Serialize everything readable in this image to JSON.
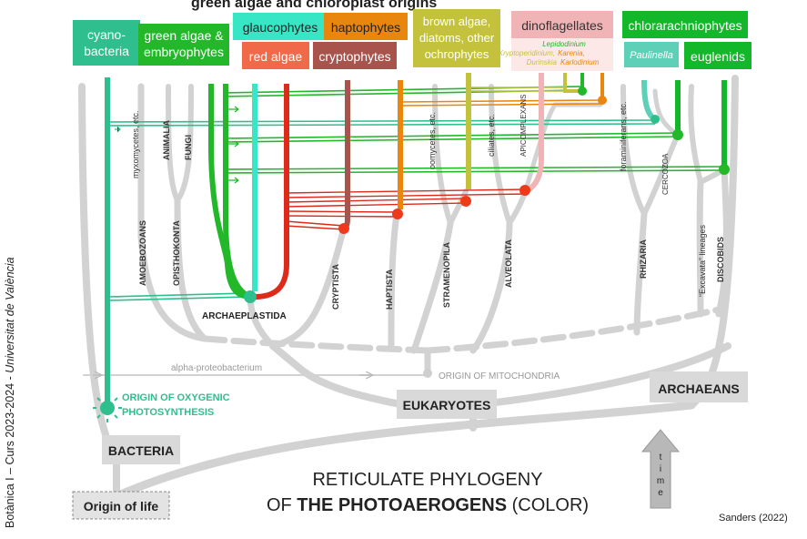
{
  "sidebar": {
    "course": "Botànica I – Curs 2023-2024 - ",
    "university": "Universitat de València"
  },
  "labels": {
    "top_title": "green algae and chloroplast origins",
    "cyano": [
      "cyano-",
      "bacteria"
    ],
    "green_algae": [
      "green algae &",
      "embryophytes"
    ],
    "glaucophytes": "glaucophytes",
    "red_algae": "red algae",
    "haptophytes": "haptophytes",
    "cryptophytes": "cryptophytes",
    "brown_algae": [
      "brown algae,",
      "diatoms, other",
      "ochrophytes"
    ],
    "dinoflagellates": "dinoflagellates",
    "dino_genera_1": "Lepidodinium",
    "dino_genera_2a": "Kryptoperidinium,",
    "dino_genera_2b": "Karenia,",
    "dino_genera_3a": "Durinskia",
    "dino_genera_3b": "Karlodinium",
    "chlorarachniophytes": "chlorarachniophytes",
    "paulinella": "Paulinella",
    "euglenids": "euglenids",
    "myxomycetes": "myxomycetes, etc.",
    "animalia": "ANIMALIA",
    "fungi": "FUNGI",
    "oomycetes": "oomycetes, etc.",
    "ciliates": "ciliates, etc.",
    "apicomplexans": "APICOMPLEXANS",
    "foraminiferans": "foraminiferans, etc.",
    "cercozoa": "CERCOZOA",
    "amoebozoans": "AMOEBOZOANS",
    "opisthokonta": "OPISTHOKONTA",
    "cryptista": "CRYPTISTA",
    "haptista": "HAPTISTA",
    "stramenopila": "STRAMENOPILA",
    "alveolata": "ALVEOLATA",
    "rhizaria": "RHIZARIA",
    "excavata": "“Excavata” lineages",
    "discobids": "DISCOBIDS",
    "archaeplastida": "ARCHAEPLASTIDA",
    "alpha_proteobacterium": "alpha-proteobacterium",
    "origin_mitochondria": "ORIGIN OF MITOCHONDRIA",
    "origin_oxygenic": [
      "ORIGIN OF OXYGENIC",
      "PHOTOSYNTHESIS"
    ],
    "eukaryotes": "EUKARYOTES",
    "archaeans": "ARCHAEANS",
    "bacteria": "BACTERIA",
    "origin_of_life": "Origin of life",
    "title_line1": "RETICULATE PHYLOGENY",
    "title_line2_pre": "OF ",
    "title_line2_bold": "THE PHOTOAEROGENS",
    "title_line2_post": " (COLOR)",
    "time": [
      "t",
      "i",
      "m",
      "e"
    ],
    "credit": "Sanders (2022)"
  },
  "colors": {
    "cyano": "#2fbf8f",
    "green": "#22b82a",
    "glauco": "#36e6c4",
    "red": "#dd2a1a",
    "crypto": "#a8544c",
    "hapto": "#e8860e",
    "brown": "#c4c23c",
    "dino": "#f0b4b6",
    "chlorarach": "#12b82a",
    "paulinella": "#5fd0b8",
    "gray": "#cfcfcf"
  }
}
